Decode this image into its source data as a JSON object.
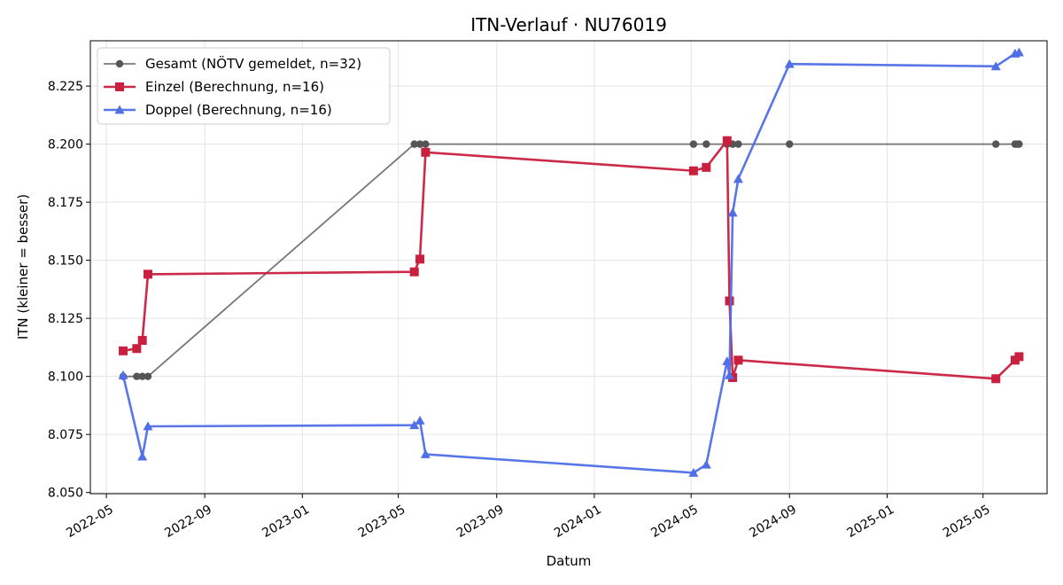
{
  "chart_data": {
    "type": "line",
    "title": "ITN-Verlauf · NU76019",
    "xlabel": "Datum",
    "ylabel": "ITN  (kleiner = besser)",
    "xlim": [
      "2022-04-11",
      "2025-07-20"
    ],
    "ylim": [
      8.0495,
      8.2445
    ],
    "x_ticks": [
      "2022-05-01",
      "2022-09-01",
      "2023-01-01",
      "2023-05-01",
      "2023-09-01",
      "2024-01-01",
      "2024-05-01",
      "2024-09-01",
      "2025-01-01",
      "2025-05-01"
    ],
    "x_tick_labels": [
      "2022-05",
      "2022-09",
      "2023-01",
      "2023-05",
      "2023-09",
      "2024-01",
      "2024-05",
      "2024-09",
      "2025-01",
      "2025-05"
    ],
    "y_ticks": [
      8.05,
      8.075,
      8.1,
      8.125,
      8.15,
      8.175,
      8.2,
      8.225
    ],
    "y_tick_labels": [
      "8.050",
      "8.075",
      "8.100",
      "8.125",
      "8.150",
      "8.175",
      "8.200",
      "8.225"
    ],
    "grid": true,
    "legend_position": "upper-left",
    "series": [
      {
        "name": "Gesamt (NÖTV gemeldet, n=32)",
        "color": "#555555",
        "marker": "circle",
        "x": [
          "2022-05-22",
          "2022-06-08",
          "2022-06-15",
          "2022-06-22",
          "2023-05-21",
          "2023-05-28",
          "2023-06-04",
          "2024-05-04",
          "2024-05-20",
          "2024-06-15",
          "2024-06-22",
          "2024-06-29",
          "2024-09-01",
          "2025-05-17",
          "2025-06-10",
          "2025-06-13",
          "2025-06-15"
        ],
        "y": [
          8.1,
          8.1,
          8.1,
          8.1,
          8.2,
          8.2,
          8.2,
          8.2,
          8.2,
          8.2,
          8.2,
          8.2,
          8.2,
          8.2,
          8.2,
          8.2,
          8.2
        ]
      },
      {
        "name": "Einzel (Berechnung, n=16)",
        "color": "#c8203e",
        "marker": "square",
        "x": [
          "2022-05-22",
          "2022-06-08",
          "2022-06-15",
          "2022-06-22",
          "2023-05-21",
          "2023-05-28",
          "2023-06-04",
          "2024-05-04",
          "2024-05-20",
          "2024-06-15",
          "2024-06-18",
          "2024-06-22",
          "2024-06-29",
          "2025-05-17",
          "2025-06-10",
          "2025-06-15"
        ],
        "y": [
          8.111,
          8.112,
          8.1155,
          8.144,
          8.145,
          8.1505,
          8.1965,
          8.1885,
          8.19,
          8.2015,
          8.1325,
          8.0995,
          8.107,
          8.099,
          8.107,
          8.1085
        ]
      },
      {
        "name": "Doppel (Berechnung, n=16)",
        "color": "#4f6fe6",
        "marker": "triangle",
        "x": [
          "2022-05-22",
          "2022-06-15",
          "2022-06-22",
          "2023-05-21",
          "2023-05-28",
          "2023-06-04",
          "2024-05-04",
          "2024-05-20",
          "2024-06-15",
          "2024-06-18",
          "2024-06-22",
          "2024-06-29",
          "2024-09-01",
          "2025-05-17",
          "2025-06-10",
          "2025-06-15"
        ],
        "y": [
          8.1005,
          8.0655,
          8.0785,
          8.079,
          8.081,
          8.0665,
          8.0585,
          8.062,
          8.1065,
          8.1005,
          8.1705,
          8.185,
          8.2345,
          8.2335,
          8.239,
          8.2395
        ]
      }
    ]
  }
}
